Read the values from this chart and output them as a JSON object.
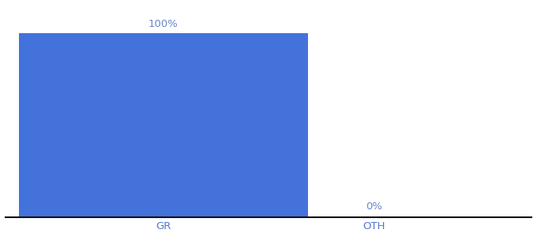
{
  "categories": [
    "GR",
    "OTH"
  ],
  "values": [
    100,
    0
  ],
  "bar_color": "#4472db",
  "label_color": "#6688cc",
  "tick_color": "#5577cc",
  "axis_line_color": "#111111",
  "background_color": "#ffffff",
  "ylim": [
    0,
    115
  ],
  "bar_width": 0.55,
  "label_fontsize": 9.5,
  "tick_fontsize": 9.5,
  "annotations": [
    "100%",
    "0%"
  ],
  "figsize": [
    6.8,
    3.0
  ],
  "dpi": 100
}
